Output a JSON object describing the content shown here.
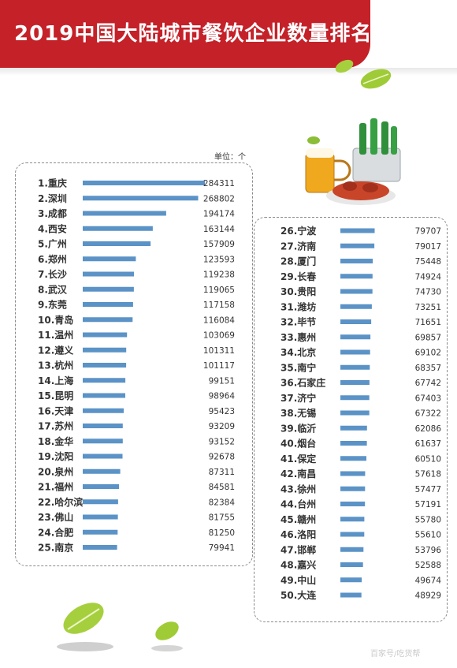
{
  "header": {
    "title": "2019中国大陆城市餐饮企业数量排名"
  },
  "unit_label": "单位：个",
  "watermark": "百家号/吃货帮",
  "colors": {
    "banner": "#c42129",
    "bar": "#5b93c7",
    "text": "#333333"
  },
  "chart_data": {
    "type": "bar",
    "orientation": "horizontal",
    "title": "2019中国大陆城市餐饮企业数量排名",
    "unit": "单位：个",
    "categories": [
      "1.重庆",
      "2.深圳",
      "3.成都",
      "4.西安",
      "5.广州",
      "6.郑州",
      "7.长沙",
      "8.武汉",
      "9.东莞",
      "10.青岛",
      "11.温州",
      "12.遵义",
      "13.杭州",
      "14.上海",
      "15.昆明",
      "16.天津",
      "17.苏州",
      "18.金华",
      "19.沈阳",
      "20.泉州",
      "21.福州",
      "22.哈尔滨",
      "23.佛山",
      "24.合肥",
      "25.南京",
      "26.宁波",
      "27.济南",
      "28.厦门",
      "29.长春",
      "30.贵阳",
      "31.潍坊",
      "32.毕节",
      "33.惠州",
      "34.北京",
      "35.南宁",
      "36.石家庄",
      "37.济宁",
      "38.无锡",
      "39.临沂",
      "40.烟台",
      "41.保定",
      "42.南昌",
      "43.徐州",
      "44.台州",
      "45.赣州",
      "46.洛阳",
      "47.邯郸",
      "48.嘉兴",
      "49.中山",
      "50.大连"
    ],
    "values": [
      284311,
      268802,
      194174,
      163144,
      157909,
      123593,
      119238,
      119065,
      117158,
      116084,
      103069,
      101311,
      101117,
      99151,
      98964,
      95423,
      93209,
      93152,
      92678,
      87311,
      84581,
      82384,
      81755,
      81250,
      79941,
      79707,
      79017,
      75448,
      74924,
      74730,
      73251,
      71651,
      69857,
      69102,
      68357,
      67742,
      67403,
      67322,
      62086,
      61637,
      60510,
      57618,
      57477,
      57191,
      55780,
      55610,
      53796,
      52588,
      49674,
      48929
    ],
    "value_labels": [
      "284311",
      "268802",
      "194174",
      "163144",
      "157909",
      "123593",
      "119238",
      "119065",
      "117158",
      "116084",
      "103069",
      "101311",
      "101117",
      "99151",
      "98964",
      "95423",
      "93209",
      "93152",
      "92678",
      "87311",
      "84581",
      "82384",
      "81755",
      "81250",
      "79941",
      "79707",
      "79017",
      "75448",
      "74924",
      "74730",
      "73251",
      "71651",
      "69857",
      "69102",
      "68357",
      "67742",
      "67403",
      "67322",
      "62086",
      "61637",
      "60510",
      "57618",
      "57477",
      "57191",
      "55780",
      "55610",
      "53796",
      "52588",
      "49674",
      "48929"
    ]
  }
}
